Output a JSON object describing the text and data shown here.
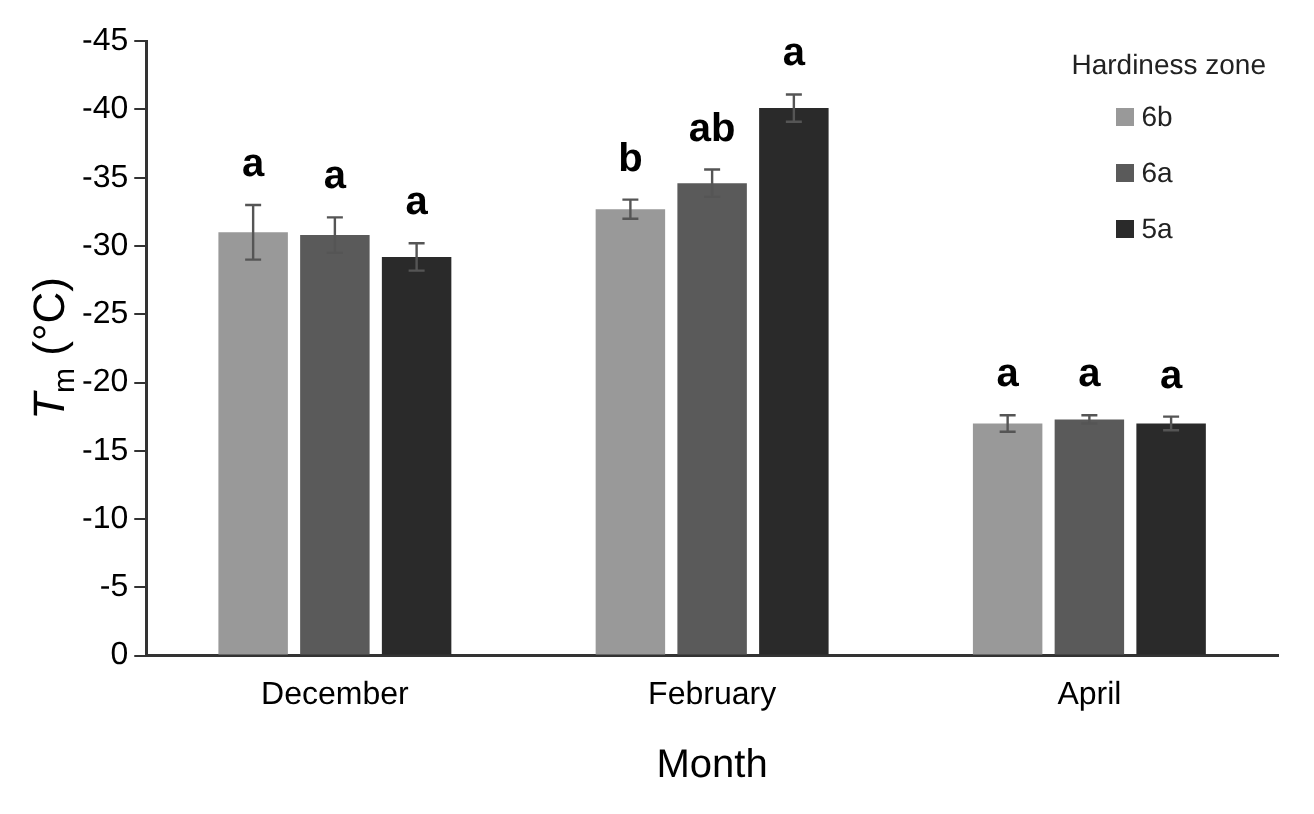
{
  "chart_data": {
    "type": "bar",
    "xlabel": "Month",
    "ylabel": "T$_{m}$ (°C)",
    "legend_title": "Hardiness zone",
    "legend": "top right",
    "grid": false,
    "categories": [
      "December",
      "February",
      "April"
    ],
    "series": [
      {
        "name": "6b",
        "color": "#999999",
        "values": [
          -31.0,
          -32.7,
          -17.0
        ],
        "errors": [
          2.0,
          0.7,
          0.6
        ]
      },
      {
        "name": "6a",
        "color": "#5a5a5a",
        "values": [
          -30.8,
          -34.6,
          -17.3
        ],
        "errors": [
          1.3,
          1.0,
          0.3
        ]
      },
      {
        "name": "5a",
        "color": "#2a2a2a",
        "values": [
          -29.2,
          -40.1,
          -17.0
        ],
        "errors": [
          1.0,
          1.0,
          0.5
        ]
      }
    ],
    "ylim": [
      0,
      -45
    ],
    "yticks": [
      0,
      -5,
      -10,
      -15,
      -20,
      -25,
      -30,
      -35,
      -40,
      -45
    ],
    "annotations": [
      "a",
      "a",
      "a",
      "b",
      "ab",
      "a",
      "a",
      "a",
      "a"
    ]
  }
}
